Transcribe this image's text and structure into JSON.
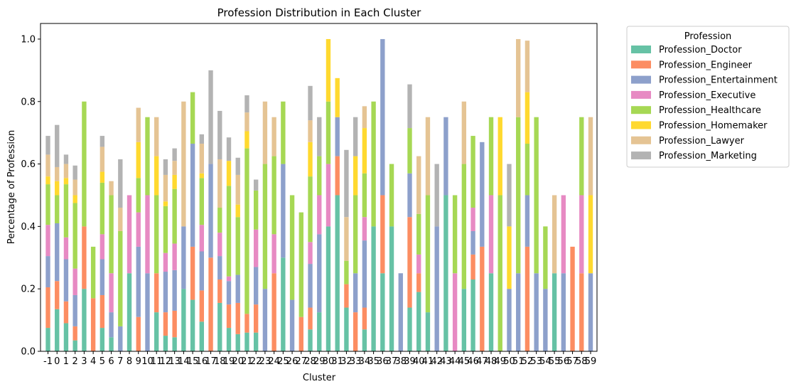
{
  "chart_data": {
    "type": "bar",
    "stacked": true,
    "title": "Profession Distribution in Each Cluster",
    "xlabel": "Cluster",
    "ylabel": "Percentage of Profession",
    "ylim": [
      0,
      1.05
    ],
    "yticks": [
      "0.0",
      "0.2",
      "0.4",
      "0.6",
      "0.8",
      "1.0"
    ],
    "legend_title": "Profession",
    "legend_position": "outside-top-right",
    "categories": [
      "-1",
      "0",
      "1",
      "2",
      "3",
      "4",
      "5",
      "6",
      "7",
      "8",
      "9",
      "10",
      "11",
      "12",
      "13",
      "14",
      "15",
      "16",
      "17",
      "18",
      "19",
      "20",
      "21",
      "22",
      "23",
      "24",
      "25",
      "26",
      "27",
      "28",
      "29",
      "30",
      "31",
      "32",
      "33",
      "34",
      "35",
      "36",
      "37",
      "38",
      "39",
      "40",
      "41",
      "42",
      "43",
      "44",
      "45",
      "46",
      "47",
      "48",
      "49",
      "50",
      "51",
      "52",
      "53",
      "54",
      "55",
      "56",
      "57",
      "58",
      "59"
    ],
    "series": [
      {
        "name": "Profession_Doctor",
        "color": "#66c2a5",
        "values": [
          0.075,
          0.135,
          0.09,
          0.035,
          0.2,
          0,
          0.075,
          0.045,
          0,
          0.25,
          0,
          0,
          0.125,
          0.05,
          0.045,
          0.2,
          0.165,
          0.095,
          0,
          0.155,
          0.075,
          0.055,
          0.06,
          0.06,
          0,
          0,
          0.3,
          0,
          0,
          0.07,
          0.125,
          0.4,
          0.5,
          0.14,
          0,
          0.07,
          0.4,
          0.25,
          0.4,
          0,
          0.14,
          0.19,
          0.125,
          0,
          0.5,
          0,
          0.2,
          0.23,
          0,
          0.25,
          0,
          0,
          0,
          0,
          0,
          0,
          0.25,
          0,
          0,
          0,
          0
        ]
      },
      {
        "name": "Profession_Engineer",
        "color": "#fc8d62",
        "values": [
          0.13,
          0.09,
          0.07,
          0.045,
          0.2,
          0.17,
          0.105,
          0,
          0,
          0,
          0.11,
          0,
          0.125,
          0.075,
          0.085,
          0,
          0.17,
          0.1,
          0.3,
          0.075,
          0.075,
          0.1,
          0.06,
          0.09,
          0,
          0.25,
          0,
          0,
          0.11,
          0.07,
          0,
          0,
          0.125,
          0.075,
          0.125,
          0.07,
          0,
          0.25,
          0,
          0,
          0.29,
          0.06,
          0,
          0,
          0,
          0,
          0,
          0.08,
          0.335,
          0,
          0,
          0,
          0,
          0.335,
          0,
          0,
          0,
          0,
          0.335,
          0.25,
          0
        ]
      },
      {
        "name": "Profession_Entertainment",
        "color": "#8da0cb",
        "values": [
          0.1,
          0.185,
          0.135,
          0.1,
          0,
          0,
          0.115,
          0.08,
          0.08,
          0,
          0.225,
          0.25,
          0,
          0.13,
          0.13,
          0.2,
          0.33,
          0.125,
          0.3,
          0.075,
          0.075,
          0.09,
          0,
          0.12,
          0.2,
          0,
          0.3,
          0.165,
          0,
          0.14,
          0.25,
          0,
          0.125,
          0,
          0.125,
          0.215,
          0,
          0.5,
          0,
          0.25,
          0.14,
          0,
          0,
          0.4,
          0.25,
          0,
          0,
          0.075,
          0.335,
          0,
          0,
          0.2,
          0.25,
          0.165,
          0.25,
          0.2,
          0,
          0.25,
          0,
          0,
          0.25
        ]
      },
      {
        "name": "Profession_Executive",
        "color": "#e78ac3",
        "values": [
          0.1,
          0,
          0.07,
          0.085,
          0,
          0,
          0.08,
          0.125,
          0,
          0.25,
          0.11,
          0.25,
          0,
          0.06,
          0.085,
          0,
          0,
          0.085,
          0,
          0.075,
          0.015,
          0,
          0,
          0.12,
          0,
          0.125,
          0,
          0,
          0,
          0.07,
          0.125,
          0.2,
          0,
          0,
          0,
          0.075,
          0,
          0,
          0,
          0,
          0,
          0.06,
          0,
          0,
          0,
          0.25,
          0,
          0.075,
          0,
          0.25,
          0,
          0,
          0,
          0,
          0,
          0,
          0,
          0.25,
          0,
          0.25,
          0
        ]
      },
      {
        "name": "Profession_Healthcare",
        "color": "#a6d854",
        "values": [
          0.13,
          0.09,
          0.17,
          0.21,
          0.4,
          0.165,
          0.165,
          0.25,
          0.305,
          0,
          0.11,
          0.25,
          0.25,
          0.15,
          0.175,
          0,
          0.165,
          0.15,
          0,
          0.08,
          0.29,
          0.185,
          0.53,
          0.125,
          0.4,
          0.25,
          0.2,
          0.335,
          0.335,
          0.21,
          0.125,
          0.2,
          0,
          0.075,
          0.25,
          0.14,
          0.4,
          0,
          0.2,
          0,
          0.145,
          0.13,
          0.375,
          0,
          0,
          0.25,
          0.4,
          0.23,
          0,
          0.25,
          0.5,
          0,
          0.5,
          0.165,
          0.5,
          0.2,
          0,
          0,
          0,
          0.25,
          0
        ]
      },
      {
        "name": "Profession_Homemaker",
        "color": "#ffd92f",
        "values": [
          0.025,
          0.045,
          0.02,
          0.025,
          0,
          0,
          0.035,
          0,
          0,
          0,
          0.115,
          0,
          0.125,
          0.015,
          0.045,
          0,
          0,
          0.015,
          0,
          0,
          0.08,
          0.04,
          0.055,
          0,
          0,
          0,
          0,
          0,
          0,
          0.11,
          0,
          0.2,
          0.125,
          0,
          0.125,
          0.145,
          0,
          0,
          0,
          0,
          0,
          0,
          0,
          0,
          0,
          0,
          0,
          0,
          0,
          0,
          0.25,
          0.2,
          0,
          0.165,
          0,
          0,
          0,
          0,
          0,
          0,
          0.25
        ]
      },
      {
        "name": "Profession_Lawyer",
        "color": "#e5c494",
        "values": [
          0.07,
          0.045,
          0.045,
          0.05,
          0,
          0,
          0.08,
          0.045,
          0.075,
          0,
          0.11,
          0,
          0.125,
          0.085,
          0.045,
          0.4,
          0,
          0.095,
          0,
          0.155,
          0,
          0.095,
          0.06,
          0,
          0.2,
          0.125,
          0,
          0,
          0,
          0.07,
          0,
          0,
          0,
          0.14,
          0,
          0.07,
          0,
          0,
          0,
          0,
          0,
          0.185,
          0.25,
          0,
          0,
          0,
          0.2,
          0,
          0,
          0,
          0,
          0,
          0.25,
          0.165,
          0,
          0,
          0.25,
          0,
          0,
          0,
          0.25
        ]
      },
      {
        "name": "Profession_Marketing",
        "color": "#b3b3b3",
        "values": [
          0.06,
          0.135,
          0.03,
          0.045,
          0,
          0,
          0.035,
          0,
          0.155,
          0,
          0,
          0,
          0,
          0.05,
          0.04,
          0,
          0,
          0.03,
          0.3,
          0.155,
          0.075,
          0.055,
          0.055,
          0.035,
          0,
          0,
          0,
          0,
          0,
          0.11,
          0.125,
          0,
          0,
          0.215,
          0.125,
          0,
          0,
          0,
          0,
          0,
          0.14,
          0,
          0,
          0.2,
          0,
          0,
          0,
          0,
          0,
          0,
          0,
          0.2,
          0,
          0,
          0,
          0,
          0,
          0,
          0,
          0,
          0
        ]
      }
    ]
  }
}
